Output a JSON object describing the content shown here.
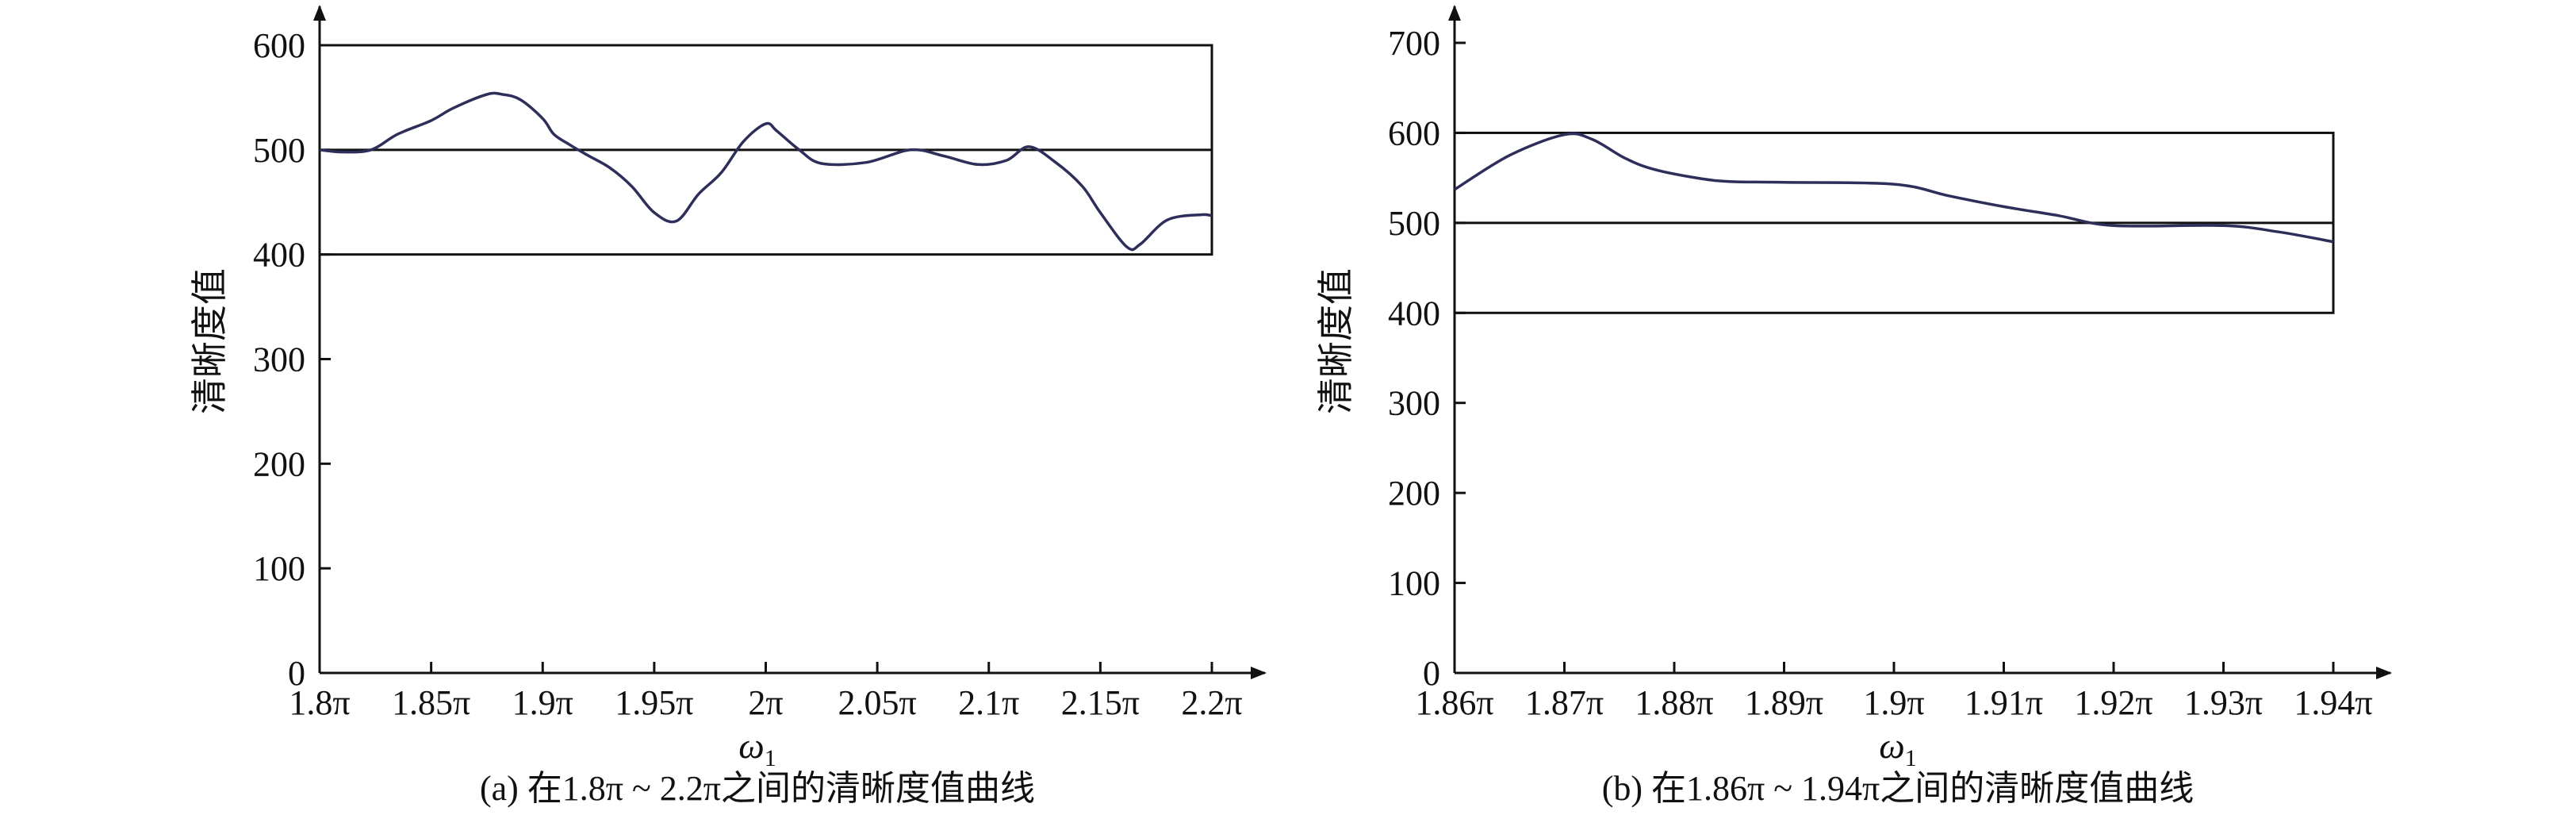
{
  "chart_data": [
    {
      "type": "line",
      "caption": "(a) 在1.8π ~ 2.2π之间的清晰度值曲线",
      "ylabel": "清晰度值",
      "xlabel": "ω",
      "xlabel_sub": "1",
      "xlim": [
        1.8,
        2.2
      ],
      "ylim": [
        0,
        600
      ],
      "x_ticks": [
        1.8,
        1.85,
        1.9,
        1.95,
        2.0,
        2.05,
        2.1,
        2.15,
        2.2
      ],
      "x_tick_labels": [
        "1.8π",
        "1.85π",
        "1.9π",
        "1.95π",
        "2π",
        "2.05π",
        "2.1π",
        "2.15π",
        "2.2π"
      ],
      "y_ticks": [
        0,
        100,
        200,
        300,
        400,
        500,
        600
      ],
      "y_tick_labels": [
        "0",
        "100",
        "200",
        "300",
        "400",
        "500",
        "600"
      ],
      "reference_box": {
        "x": [
          1.8,
          2.2
        ],
        "y": [
          400,
          600
        ]
      },
      "reference_line_y": 500,
      "series": [
        {
          "x": [
            1.8,
            1.81,
            1.823,
            1.835,
            1.85,
            1.86,
            1.875,
            1.882,
            1.89,
            1.9,
            1.905,
            1.912,
            1.92,
            1.93,
            1.94,
            1.95,
            1.96,
            1.97,
            1.98,
            1.99,
            2.0,
            2.005,
            2.015,
            2.025,
            2.045,
            2.065,
            2.08,
            2.095,
            2.108,
            2.118,
            2.13,
            2.142,
            2.15,
            2.162,
            2.168,
            2.18,
            2.195,
            2.2
          ],
          "y": [
            500,
            498,
            500,
            515,
            528,
            540,
            553,
            553,
            548,
            530,
            515,
            505,
            495,
            483,
            465,
            440,
            432,
            458,
            478,
            508,
            525,
            518,
            500,
            487,
            488,
            500,
            494,
            486,
            490,
            503,
            488,
            465,
            440,
            407,
            410,
            433,
            438,
            437
          ]
        }
      ]
    },
    {
      "type": "line",
      "caption": "(b) 在1.86π ~ 1.94π之间的清晰度值曲线",
      "ylabel": "清晰度值",
      "xlabel": "ω",
      "xlabel_sub": "1",
      "xlim": [
        1.86,
        1.94
      ],
      "ylim": [
        0,
        700
      ],
      "x_ticks": [
        1.86,
        1.87,
        1.88,
        1.89,
        1.9,
        1.91,
        1.92,
        1.93,
        1.94
      ],
      "x_tick_labels": [
        "1.86π",
        "1.87π",
        "1.88π",
        "1.89π",
        "1.9π",
        "1.91π",
        "1.92π",
        "1.93π",
        "1.94π"
      ],
      "y_ticks": [
        0,
        100,
        200,
        300,
        400,
        500,
        600,
        700
      ],
      "y_tick_labels": [
        "0",
        "100",
        "200",
        "300",
        "400",
        "500",
        "600",
        "700"
      ],
      "reference_box": {
        "x": [
          1.86,
          1.94
        ],
        "y": [
          400,
          600
        ]
      },
      "reference_line_y": 500,
      "series": [
        {
          "x": [
            1.86,
            1.865,
            1.87,
            1.8725,
            1.8755,
            1.878,
            1.882,
            1.885,
            1.89,
            1.9,
            1.905,
            1.91,
            1.915,
            1.92,
            1.93,
            1.935,
            1.94
          ],
          "y": [
            537,
            575,
            598,
            593,
            572,
            560,
            550,
            546,
            545,
            543,
            530,
            518,
            508,
            497,
            497,
            490,
            479
          ]
        }
      ]
    }
  ]
}
